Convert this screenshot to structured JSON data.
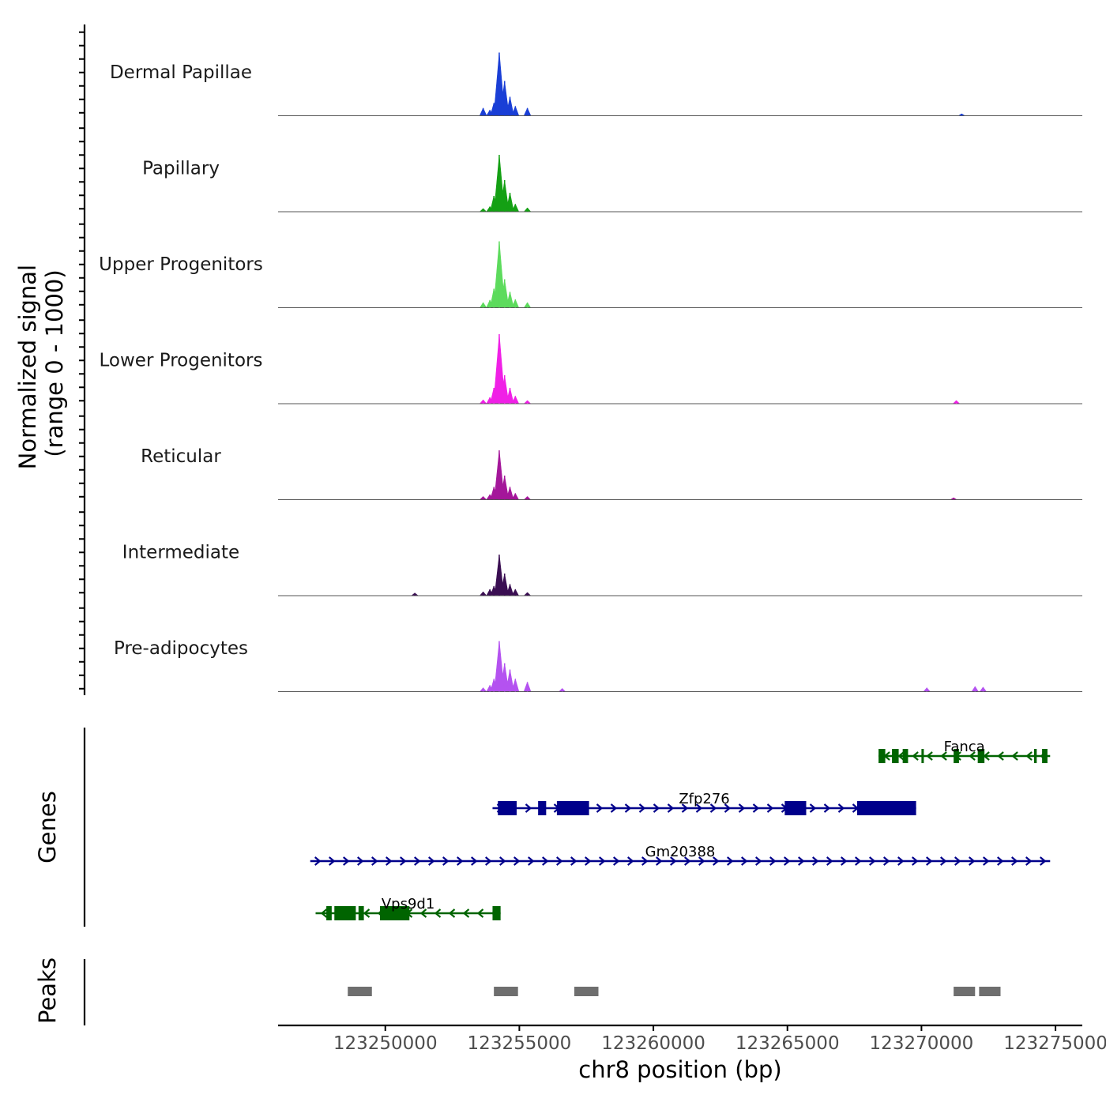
{
  "chart_data": {
    "type": "genome-tracks",
    "x_axis": {
      "title": "chr8 position (bp)",
      "range": [
        123246000,
        123276000
      ],
      "ticks": [
        123250000,
        123255000,
        123260000,
        123265000,
        123270000,
        123275000
      ],
      "tick_labels": [
        "123250000",
        "123255000",
        "123260000",
        "123265000",
        "123270000",
        "123275000"
      ]
    },
    "coverage": {
      "ylabel": "Normalized signal",
      "ylabel_sub": "(range 0 - 1000)",
      "tracks": [
        {
          "name": "Dermal Papillae",
          "color": "#1a3fd6",
          "peaks": [
            [
              123253650,
              0.12
            ],
            [
              123253900,
              0.09
            ],
            [
              123254050,
              0.2
            ],
            [
              123254250,
              1.0
            ],
            [
              123254450,
              0.55
            ],
            [
              123254650,
              0.3
            ],
            [
              123254850,
              0.15
            ],
            [
              123255300,
              0.12
            ],
            [
              123271500,
              0.03
            ]
          ]
        },
        {
          "name": "Papillary",
          "color": "#14a014",
          "peaks": [
            [
              123253650,
              0.05
            ],
            [
              123253900,
              0.08
            ],
            [
              123254050,
              0.25
            ],
            [
              123254250,
              0.9
            ],
            [
              123254450,
              0.5
            ],
            [
              123254650,
              0.3
            ],
            [
              123254850,
              0.12
            ],
            [
              123255300,
              0.06
            ]
          ]
        },
        {
          "name": "Upper Progenitors",
          "color": "#5ddb5d",
          "peaks": [
            [
              123253650,
              0.08
            ],
            [
              123253900,
              0.12
            ],
            [
              123254050,
              0.3
            ],
            [
              123254250,
              1.05
            ],
            [
              123254450,
              0.45
            ],
            [
              123254650,
              0.25
            ],
            [
              123254850,
              0.13
            ],
            [
              123255300,
              0.08
            ]
          ]
        },
        {
          "name": "Lower Progenitors",
          "color": "#f020e6",
          "peaks": [
            [
              123253650,
              0.06
            ],
            [
              123253900,
              0.1
            ],
            [
              123254050,
              0.25
            ],
            [
              123254250,
              1.1
            ],
            [
              123254450,
              0.45
            ],
            [
              123254650,
              0.25
            ],
            [
              123254850,
              0.12
            ],
            [
              123255300,
              0.05
            ],
            [
              123271300,
              0.05
            ]
          ]
        },
        {
          "name": "Reticular",
          "color": "#a4179a",
          "peaks": [
            [
              123253650,
              0.05
            ],
            [
              123253900,
              0.08
            ],
            [
              123254050,
              0.2
            ],
            [
              123254250,
              0.78
            ],
            [
              123254450,
              0.38
            ],
            [
              123254650,
              0.2
            ],
            [
              123254850,
              0.1
            ],
            [
              123255300,
              0.05
            ],
            [
              123271200,
              0.03
            ]
          ]
        },
        {
          "name": "Intermediate",
          "color": "#3a0e52",
          "peaks": [
            [
              123251100,
              0.04
            ],
            [
              123253650,
              0.06
            ],
            [
              123253900,
              0.1
            ],
            [
              123254050,
              0.15
            ],
            [
              123254250,
              0.65
            ],
            [
              123254450,
              0.35
            ],
            [
              123254650,
              0.18
            ],
            [
              123254850,
              0.1
            ],
            [
              123255300,
              0.05
            ]
          ]
        },
        {
          "name": "Pre-adipocytes",
          "color": "#b452f0",
          "peaks": [
            [
              123253650,
              0.06
            ],
            [
              123253900,
              0.1
            ],
            [
              123254050,
              0.2
            ],
            [
              123254250,
              0.8
            ],
            [
              123254450,
              0.45
            ],
            [
              123254650,
              0.35
            ],
            [
              123254850,
              0.2
            ],
            [
              123255300,
              0.15
            ],
            [
              123256600,
              0.05
            ],
            [
              123270200,
              0.06
            ],
            [
              123272000,
              0.08
            ],
            [
              123272300,
              0.07
            ]
          ]
        }
      ]
    },
    "genes": {
      "ylabel": "Genes",
      "items": [
        {
          "name": "Fanca",
          "strand": "-",
          "color": "#006400",
          "start": 123268400,
          "end": 123274800,
          "exons": [
            [
              123268400,
              123268650
            ],
            [
              123268900,
              123269150
            ],
            [
              123269300,
              123269500
            ],
            [
              123270000,
              123270080
            ],
            [
              123271200,
              123271400
            ],
            [
              123272100,
              123272350
            ],
            [
              123274200,
              123274300
            ],
            [
              123274500,
              123274700
            ]
          ]
        },
        {
          "name": "Zfp276",
          "strand": "+",
          "color": "#00008b",
          "start": 123254000,
          "end": 123269800,
          "exons": [
            [
              123254200,
              123254900
            ],
            [
              123255700,
              123256000
            ],
            [
              123256400,
              123257600
            ],
            [
              123264900,
              123265700
            ],
            [
              123267600,
              123269800
            ]
          ]
        },
        {
          "name": "Gm20388",
          "strand": "+",
          "color": "#00008b",
          "start": 123247200,
          "end": 123274800,
          "exons": []
        },
        {
          "name": "Vps9d1",
          "strand": "-",
          "color": "#006400",
          "start": 123247400,
          "end": 123254300,
          "exons": [
            [
              123247800,
              123248000
            ],
            [
              123248100,
              123248900
            ],
            [
              123249000,
              123249200
            ],
            [
              123249800,
              123250900
            ],
            [
              123254000,
              123254300
            ]
          ]
        }
      ]
    },
    "peaks": {
      "ylabel": "Peaks",
      "color": "#6e6e6e",
      "regions": [
        [
          123248600,
          123249500
        ],
        [
          123254050,
          123254950
        ],
        [
          123257050,
          123257950
        ],
        [
          123271200,
          123272000
        ],
        [
          123272150,
          123272950
        ]
      ]
    }
  }
}
